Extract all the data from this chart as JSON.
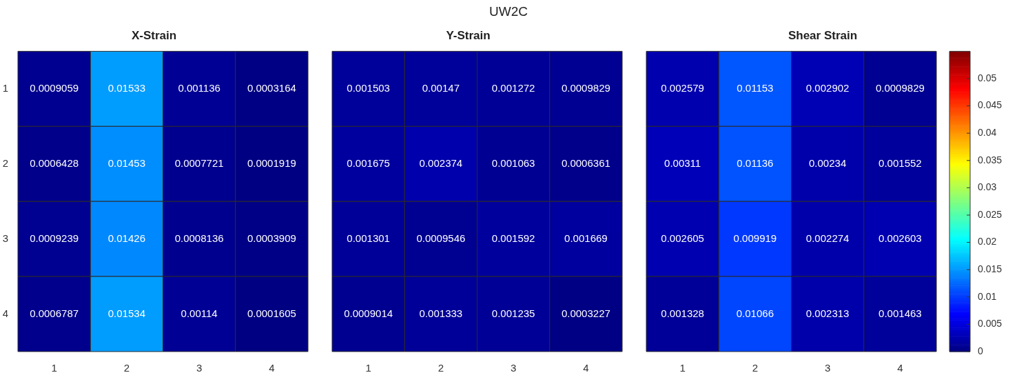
{
  "chart_data": [
    {
      "type": "heatmap",
      "title": "X-Strain",
      "annotations": [
        "UW2C"
      ],
      "categories": [
        "1",
        "2",
        "3",
        "4"
      ],
      "y_categories": [
        "1",
        "2",
        "3",
        "4"
      ],
      "cells": [
        [
          0.0009059,
          0.01533,
          0.001136,
          0.0003164
        ],
        [
          0.0006428,
          0.01453,
          0.0007721,
          0.0001919
        ],
        [
          0.0009239,
          0.01426,
          0.0008136,
          0.0003909
        ],
        [
          0.0006787,
          0.01534,
          0.00114,
          0.0001605
        ]
      ],
      "data_labels": true
    },
    {
      "type": "heatmap",
      "title": "Y-Strain",
      "categories": [
        "1",
        "2",
        "3",
        "4"
      ],
      "y_categories": [
        "1",
        "2",
        "3",
        "4"
      ],
      "cells": [
        [
          0.001503,
          0.00147,
          0.001272,
          0.0009829
        ],
        [
          0.001675,
          0.002374,
          0.001063,
          0.0006361
        ],
        [
          0.001301,
          0.0009546,
          0.001592,
          0.001669
        ],
        [
          0.0009014,
          0.001333,
          0.001235,
          0.0003227
        ]
      ],
      "data_labels": true,
      "tick_labels": "x"
    },
    {
      "type": "heatmap",
      "title": "Shear Strain",
      "categories": [
        "1",
        "2",
        "3",
        "4"
      ],
      "y_categories": [
        "1",
        "2",
        "3",
        "4"
      ],
      "cells": [
        [
          0.002579,
          0.01153,
          0.002902,
          0.0009829
        ],
        [
          0.00311,
          0.01136,
          0.00234,
          0.001552
        ],
        [
          0.002605,
          0.009919,
          0.002274,
          0.002603
        ],
        [
          0.001328,
          0.01066,
          0.002313,
          0.001463
        ]
      ],
      "clim": [
        0,
        0.055
      ],
      "cticks": [
        0,
        0.005,
        0.01,
        0.015,
        0.02,
        0.025,
        0.03,
        0.035,
        0.04,
        0.045,
        0.05
      ],
      "data_labels": true,
      "tick_labels": "x"
    }
  ]
}
